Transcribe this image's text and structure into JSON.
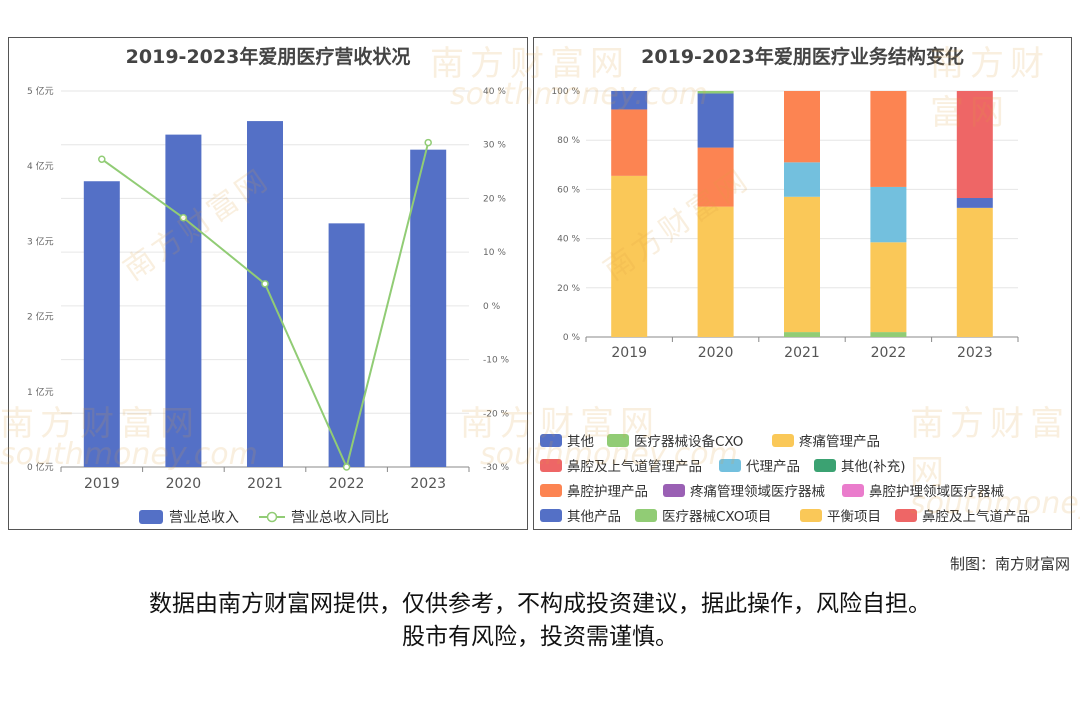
{
  "credit": "制图：南方财富网",
  "disclaimer": {
    "line1": "数据由南方财富网提供，仅供参考，不构成投资建议，据此操作，风险自担。",
    "line2": "股市有风险，投资需谨慎。"
  },
  "watermark": {
    "cn": "南方财富网",
    "en": "southmoney.com"
  },
  "chart_data": [
    {
      "type": "bar",
      "title": "2019-2023年爱朋医疗营收状况",
      "categories": [
        "2019",
        "2020",
        "2021",
        "2022",
        "2023"
      ],
      "left_axis": {
        "ticks": [
          "0 亿元",
          "1 亿元",
          "2 亿元",
          "3 亿元",
          "4 亿元",
          "5 亿元"
        ],
        "ylim": [
          0,
          5
        ]
      },
      "right_axis": {
        "ticks": [
          "-30 %",
          "-20 %",
          "-10 %",
          "0 %",
          "10 %",
          "20 %",
          "30 %",
          "40 %"
        ],
        "ylim": [
          -30,
          40
        ]
      },
      "series": [
        {
          "name": "营业总收入",
          "type": "bar",
          "axis": "left",
          "color": "#5470c6",
          "values": [
            3.8,
            4.42,
            4.6,
            3.24,
            4.22
          ]
        },
        {
          "name": "营业总收入同比",
          "type": "line",
          "axis": "right",
          "color": "#91cc75",
          "values": [
            27.3,
            16.4,
            4.1,
            -30.0,
            30.4
          ]
        }
      ],
      "legend_position": "bottom",
      "grid": true
    },
    {
      "type": "bar",
      "stacked": true,
      "title": "2019-2023年爱朋医疗业务结构变化",
      "categories": [
        "2019",
        "2020",
        "2021",
        "2022",
        "2023"
      ],
      "y_ticks": [
        "0 %",
        "20 %",
        "40 %",
        "60 %",
        "80 %",
        "100 %"
      ],
      "ylim": [
        0,
        100
      ],
      "legend": [
        {
          "name": "其他",
          "color": "#5470c6"
        },
        {
          "name": "医疗器械设备CXO",
          "color": "#91cc75"
        },
        {
          "name": "疼痛管理产品",
          "color": "#fac858"
        },
        {
          "name": "鼻腔及上气道管理产品",
          "color": "#ee6666"
        },
        {
          "name": "代理产品",
          "color": "#73c0de"
        },
        {
          "name": "其他(补充)",
          "color": "#3ba272"
        },
        {
          "name": "鼻腔护理产品",
          "color": "#fc8452"
        },
        {
          "name": "疼痛管理领域医疗器械",
          "color": "#9a60b4"
        },
        {
          "name": "鼻腔护理领域医疗器械",
          "color": "#ea7ccc"
        },
        {
          "name": "其他产品",
          "color": "#5470c6"
        },
        {
          "name": "医疗器械CXO项目",
          "color": "#91cc75"
        },
        {
          "name": "平衡项目",
          "color": "#fac858"
        },
        {
          "name": "鼻腔及上气道产品",
          "color": "#ee6666"
        }
      ],
      "stacks": [
        [
          {
            "name": "疼痛管理产品",
            "value": 65.5
          },
          {
            "name": "鼻腔护理产品",
            "value": 27
          },
          {
            "name": "其他",
            "value": 7.5
          }
        ],
        [
          {
            "name": "疼痛管理产品",
            "value": 53
          },
          {
            "name": "鼻腔护理产品",
            "value": 24
          },
          {
            "name": "其他",
            "value": 22
          },
          {
            "name": "医疗器械设备CXO",
            "value": 1
          }
        ],
        [
          {
            "name": "医疗器械设备CXO",
            "value": 2
          },
          {
            "name": "疼痛管理产品",
            "value": 55
          },
          {
            "name": "代理产品",
            "value": 14
          },
          {
            "name": "鼻腔护理产品",
            "value": 29
          }
        ],
        [
          {
            "name": "医疗器械设备CXO",
            "value": 2
          },
          {
            "name": "疼痛管理产品",
            "value": 36.5
          },
          {
            "name": "代理产品",
            "value": 22.5
          },
          {
            "name": "鼻腔护理产品",
            "value": 39
          }
        ],
        [
          {
            "name": "平衡项目",
            "value": 52.5
          },
          {
            "name": "其他产品",
            "value": 4
          },
          {
            "name": "鼻腔及上气道产品",
            "value": 43.5
          }
        ]
      ],
      "legend_position": "bottom",
      "grid": true
    }
  ]
}
